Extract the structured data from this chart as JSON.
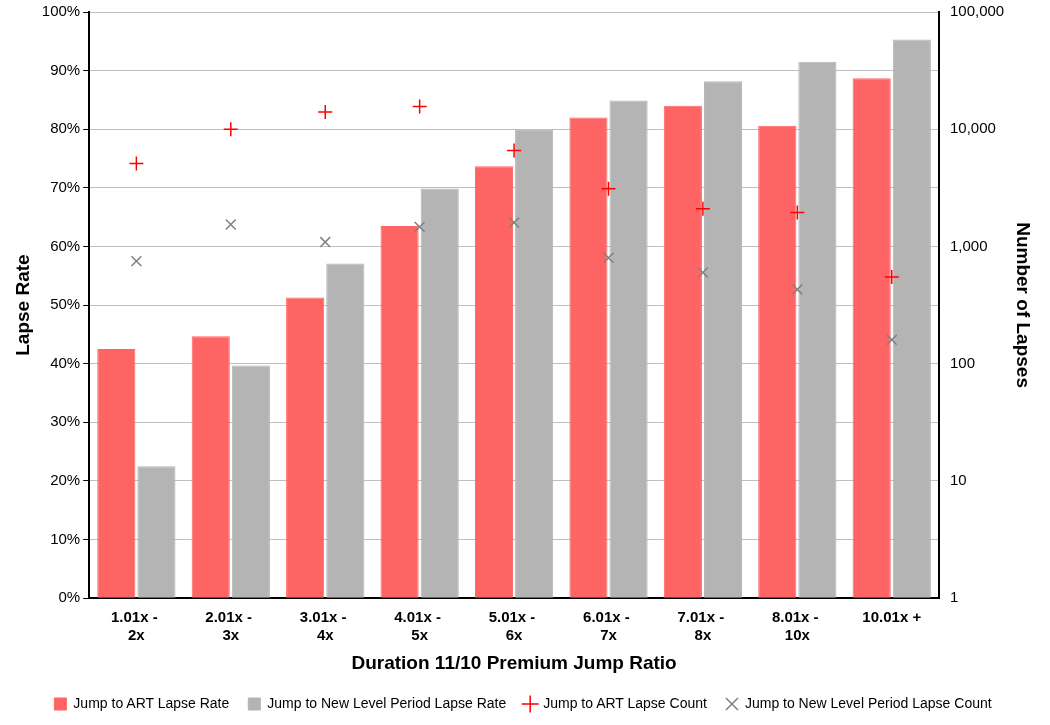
{
  "chart_data": {
    "type": "bar",
    "xlabel": "Duration 11/10 Premium Jump Ratio",
    "ylabel": "Lapse Rate",
    "y2label": "Number of Lapses",
    "categories": [
      "1.01x - 2x",
      "2.01x - 3x",
      "3.01x - 4x",
      "4.01x - 5x",
      "5.01x - 6x",
      "6.01x - 7x",
      "7.01x - 8x",
      "8.01x - 10x",
      "10.01x +"
    ],
    "series": [
      {
        "name": "Jump to ART Lapse Rate",
        "color": "#ff6464",
        "values": [
          42.5,
          44.7,
          51.3,
          63.5,
          73.7,
          82.0,
          84.0,
          80.6,
          88.7
        ]
      },
      {
        "name": "Jump to New Level Period Lapse Rate",
        "color": "#b4b4b4",
        "values": [
          22.5,
          39.7,
          57.1,
          69.9,
          79.9,
          84.9,
          88.2,
          91.5,
          95.3
        ]
      },
      {
        "name": "Jump to ART Lapse Count",
        "type": "scatter",
        "axis": "y2",
        "marker": "cross",
        "color": "#ff0000",
        "values": [
          5100,
          10000,
          14000,
          15600,
          6600,
          3100,
          2100,
          1950,
          550
        ]
      },
      {
        "name": "Jump to New Level Period Lapse Count",
        "type": "scatter",
        "axis": "y2",
        "marker": "x",
        "color": "#808080",
        "values": [
          750,
          1540,
          1090,
          1470,
          1600,
          800,
          600,
          430,
          160
        ]
      }
    ],
    "ylim": [
      0,
      100
    ],
    "yticks": [
      {
        "value": 0,
        "label": "0%"
      },
      {
        "value": 10,
        "label": "10%"
      },
      {
        "value": 20,
        "label": "20%"
      },
      {
        "value": 30,
        "label": "30%"
      },
      {
        "value": 40,
        "label": "40%"
      },
      {
        "value": 50,
        "label": "50%"
      },
      {
        "value": 60,
        "label": "60%"
      },
      {
        "value": 70,
        "label": "70%"
      },
      {
        "value": 80,
        "label": "80%"
      },
      {
        "value": 90,
        "label": "90%"
      },
      {
        "value": 100,
        "label": "100%"
      }
    ],
    "y2lim": [
      1,
      100000
    ],
    "y2ticks": [
      1,
      10,
      100,
      {
        "value": 1000,
        "label": "1,000"
      },
      {
        "value": 10000,
        "label": "10,000"
      },
      {
        "value": 100000,
        "label": "100,000"
      }
    ],
    "log": "y2",
    "grid": "y",
    "legend": "bottom"
  }
}
